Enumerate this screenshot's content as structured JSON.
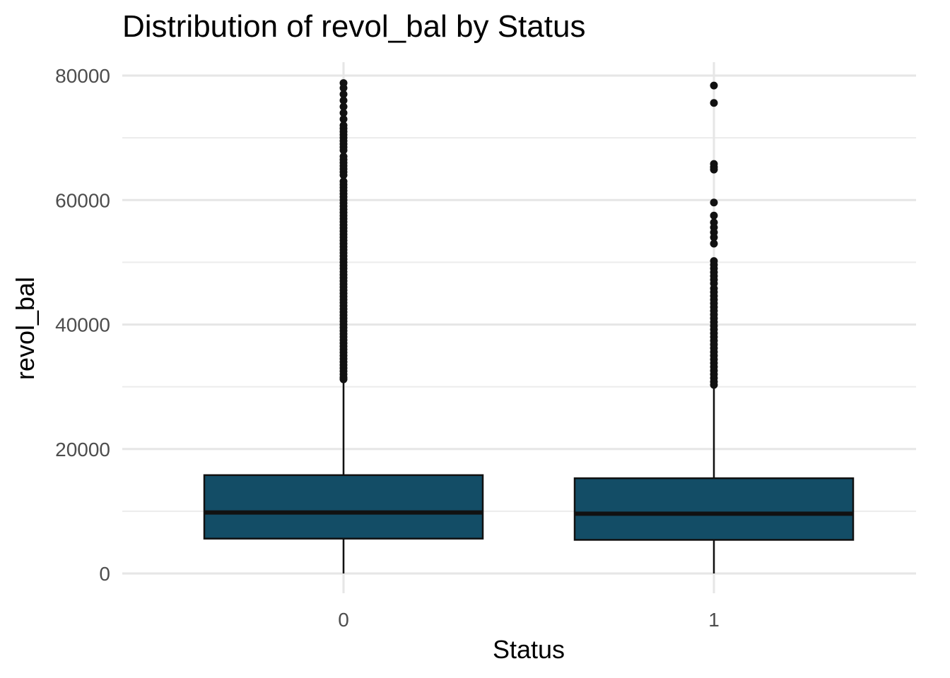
{
  "chart_data": {
    "type": "boxplot",
    "title": "Distribution of revol_bal by Status",
    "xlabel": "Status",
    "ylabel": "revol_bal",
    "ylim": [
      0,
      80000
    ],
    "y_ticks": [
      0,
      20000,
      40000,
      60000,
      80000
    ],
    "y_tick_labels": [
      "0",
      "20000",
      "40000",
      "60000",
      "80000"
    ],
    "y_minor_ticks": [
      10000,
      30000,
      50000,
      70000
    ],
    "categories": [
      "0",
      "1"
    ],
    "grid": true,
    "legend": "none",
    "fill_color": "#134d66",
    "line_color": "#111111",
    "boxes": [
      {
        "category": "0",
        "q1": 5600,
        "median": 9800,
        "q3": 15800,
        "whisker_low": 0,
        "whisker_high": 31000,
        "outliers": [
          78800,
          78000,
          77000,
          76000,
          75000,
          74000,
          73000,
          72000,
          71500,
          71000,
          70500,
          70000,
          69500,
          69000,
          68500,
          68000,
          67000,
          66500,
          66000,
          65500,
          65000,
          64500,
          64000,
          63000,
          62500,
          62000,
          61500,
          61000,
          60500,
          60000,
          59500,
          59000,
          58500,
          58000,
          57500,
          57000,
          56500,
          56000,
          55500,
          55000,
          54500,
          54000,
          53500,
          53000,
          52500,
          52000,
          51500,
          51000,
          50500,
          50000,
          49500,
          49000,
          48500,
          48000,
          47500,
          47000,
          46500,
          46000,
          45500,
          45000,
          44500,
          44000,
          43500,
          43000,
          42500,
          42000,
          41500,
          41000,
          40500,
          40000,
          39500,
          39000,
          38500,
          38000,
          37500,
          37000,
          36500,
          36000,
          35500,
          35000,
          34500,
          34000,
          33500,
          33000,
          32500,
          32000,
          31500,
          31200
        ]
      },
      {
        "category": "1",
        "q1": 5400,
        "median": 9600,
        "q3": 15300,
        "whisker_low": 0,
        "whisker_high": 30000,
        "outliers": [
          78400,
          75600,
          65800,
          65300,
          64900,
          59600,
          57500,
          56400,
          55600,
          54800,
          54000,
          53000,
          50200,
          49600,
          49000,
          48400,
          47800,
          47200,
          46600,
          45800,
          45200,
          44600,
          44000,
          43400,
          42800,
          42200,
          41600,
          41000,
          40400,
          39800,
          39200,
          38600,
          38000,
          37400,
          36800,
          36200,
          35600,
          35000,
          34400,
          33800,
          33200,
          32600,
          32000,
          31400,
          30800,
          30300
        ]
      }
    ]
  }
}
